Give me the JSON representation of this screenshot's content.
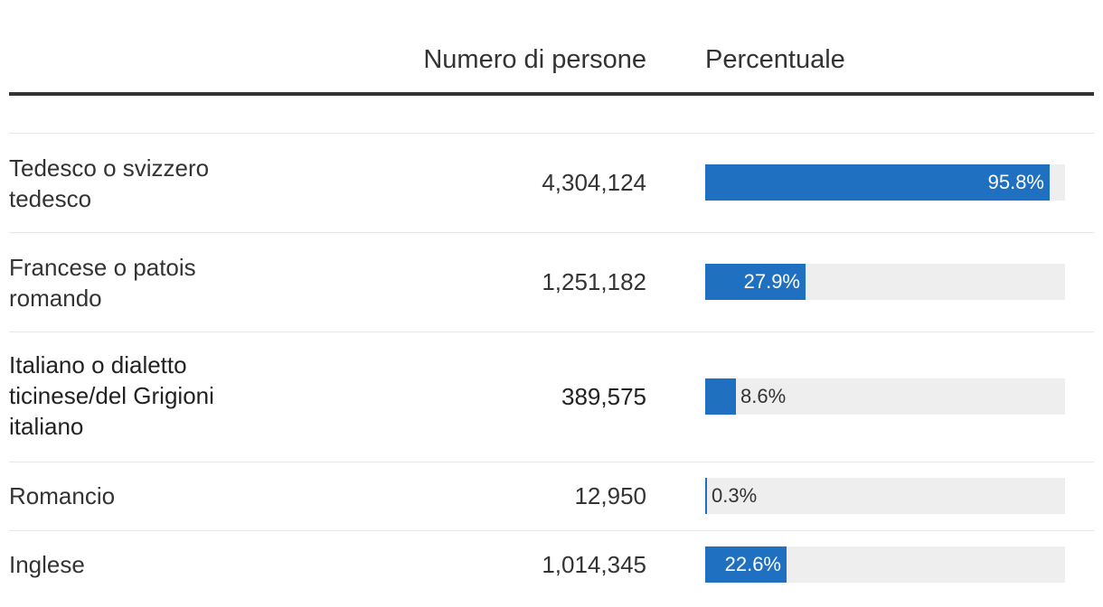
{
  "header": {
    "col_number": "Numero di persone",
    "col_percent": "Percentuale"
  },
  "colors": {
    "bar": "#1f70c1",
    "track": "#eeeeee",
    "text": "#333333",
    "rule": "#e6e6e6"
  },
  "rows": [
    {
      "label": "Tedesco o svizzero tedesco",
      "value": "4,304,124",
      "pct_label": "95.8%",
      "bold": false
    },
    {
      "label": "Francese o patois romando",
      "value": "1,251,182",
      "pct_label": "27.9%",
      "bold": false
    },
    {
      "label": "Italiano o dialetto ticinese/del Grigioni italiano",
      "value": "389,575",
      "pct_label": "8.6%",
      "bold": true
    },
    {
      "label": "Romancio",
      "value": "12,950",
      "pct_label": "0.3%",
      "bold": false
    },
    {
      "label": "Inglese",
      "value": "1,014,345",
      "pct_label": "22.6%",
      "bold": false
    }
  ],
  "chart_data": {
    "type": "bar",
    "categories": [
      "Tedesco o svizzero tedesco",
      "Francese o patois romando",
      "Italiano o dialetto ticinese/del Grigioni italiano",
      "Romancio",
      "Inglese"
    ],
    "series": [
      {
        "name": "Numero di persone",
        "values": [
          4304124,
          1251182,
          389575,
          12950,
          1014345
        ]
      },
      {
        "name": "Percentuale",
        "values": [
          95.8,
          27.9,
          8.6,
          0.3,
          22.6
        ]
      }
    ],
    "ylim": [
      0,
      100
    ],
    "grid": false
  }
}
